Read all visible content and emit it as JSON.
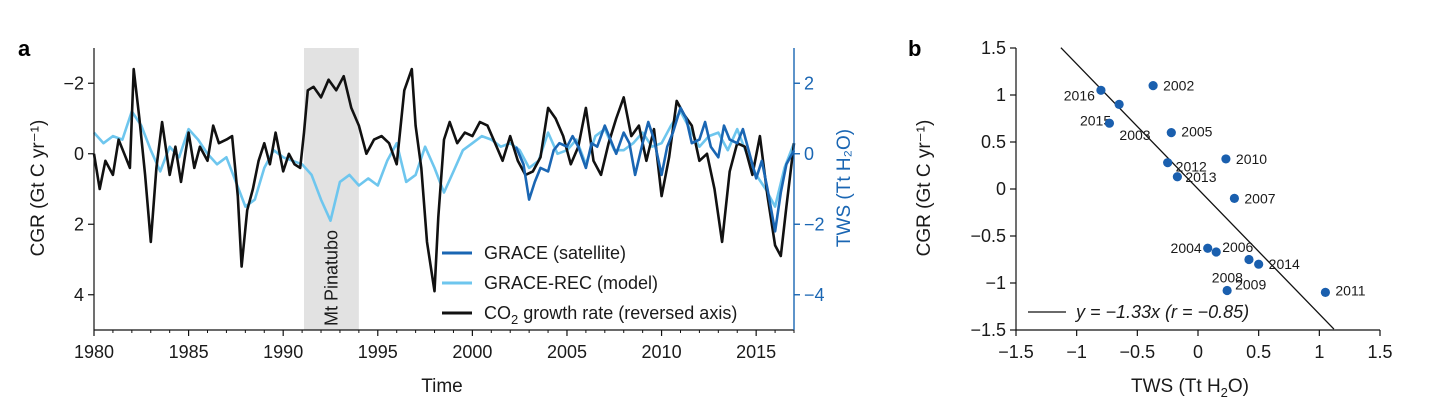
{
  "colors": {
    "grace": "#1a66b3",
    "grace_rec": "#6ec6ee",
    "cgr": "#111111",
    "points": "#1a5fae",
    "shade": "#e2e2e2"
  },
  "chart_data": [
    {
      "panel": "a",
      "type": "line",
      "xlabel": "Time",
      "ylabel_left": "CGR (Gt C yr⁻¹)",
      "ylabel_right": "TWS (Tt H₂O)",
      "xlim": [
        1980,
        2017
      ],
      "xticks": [
        "1980",
        "1985",
        "1990",
        "1995",
        "2000",
        "2005",
        "2010",
        "2015"
      ],
      "ylim_left_reversed": [
        5,
        -3
      ],
      "yticks_left": [
        "−2",
        "0",
        "2",
        "4"
      ],
      "ylim_right": [
        -5,
        3
      ],
      "yticks_right": [
        "2",
        "0",
        "−2",
        "−4"
      ],
      "annotation": {
        "text": "Mt Pinatubo",
        "x_start": 1991.1,
        "x_end": 1994.0
      },
      "legend": {
        "position": "bottom-right",
        "grace": "GRACE (satellite)",
        "grace_rec": "GRACE-REC (model)",
        "cgr_prefix": "CO",
        "cgr_sub": "2",
        "cgr_suffix": " growth rate (reversed axis)"
      },
      "series": [
        {
          "name": "CO2 growth rate (reversed axis)",
          "axis": "left",
          "x": [
            1980.0,
            1980.3,
            1980.6,
            1981.0,
            1981.3,
            1981.6,
            1981.9,
            1982.1,
            1982.4,
            1982.7,
            1983.0,
            1983.3,
            1983.6,
            1984.0,
            1984.3,
            1984.6,
            1985.0,
            1985.3,
            1985.6,
            1986.0,
            1986.3,
            1986.6,
            1987.0,
            1987.3,
            1987.6,
            1987.8,
            1988.1,
            1988.4,
            1988.7,
            1989.0,
            1989.3,
            1989.6,
            1990.0,
            1990.3,
            1990.6,
            1990.9,
            1991.1,
            1991.3,
            1991.6,
            1992.0,
            1992.4,
            1992.8,
            1993.2,
            1993.6,
            1994.0,
            1994.4,
            1994.8,
            1995.2,
            1995.6,
            1996.0,
            1996.4,
            1996.8,
            1997.0,
            1997.3,
            1997.6,
            1998.0,
            1998.2,
            1998.5,
            1998.8,
            1999.2,
            1999.6,
            2000.0,
            2000.4,
            2000.8,
            2001.2,
            2001.6,
            2002.0,
            2002.4,
            2002.8,
            2003.2,
            2003.6,
            2004.0,
            2004.4,
            2004.8,
            2005.2,
            2005.6,
            2006.0,
            2006.4,
            2006.8,
            2007.2,
            2007.6,
            2008.0,
            2008.4,
            2008.8,
            2009.2,
            2009.6,
            2010.0,
            2010.4,
            2010.8,
            2011.2,
            2011.6,
            2012.0,
            2012.4,
            2012.8,
            2013.2,
            2013.6,
            2014.0,
            2014.4,
            2014.8,
            2015.2,
            2015.6,
            2016.0,
            2016.3,
            2016.6,
            2017.0
          ],
          "values": [
            0.0,
            1.0,
            0.2,
            0.6,
            -0.4,
            0.0,
            0.4,
            -2.4,
            -1.0,
            0.6,
            2.5,
            0.4,
            -0.9,
            0.6,
            -0.2,
            0.8,
            -0.6,
            0.4,
            -0.2,
            0.2,
            -0.8,
            -0.3,
            -0.4,
            -0.5,
            1.2,
            3.2,
            1.6,
            1.0,
            0.2,
            -0.3,
            0.3,
            -0.6,
            0.5,
            0.0,
            0.3,
            0.4,
            -0.6,
            -1.8,
            -1.9,
            -1.6,
            -2.1,
            -1.8,
            -2.2,
            -1.3,
            -0.8,
            0.0,
            -0.4,
            -0.5,
            -0.3,
            0.3,
            -1.8,
            -2.4,
            -0.8,
            0.4,
            2.5,
            3.9,
            1.8,
            -0.4,
            -0.9,
            -0.3,
            -0.6,
            -0.5,
            -0.9,
            -0.8,
            -0.3,
            0.2,
            -0.5,
            0.2,
            0.6,
            0.5,
            0.1,
            -1.3,
            -1.0,
            -0.5,
            0.3,
            -0.2,
            -1.3,
            0.2,
            0.6,
            -0.3,
            -1.0,
            -1.6,
            -0.5,
            -0.8,
            0.2,
            -0.7,
            1.2,
            0.1,
            -1.5,
            -1.1,
            -0.8,
            0.2,
            0.0,
            1.0,
            2.5,
            0.5,
            -0.3,
            -0.2,
            0.6,
            -0.5,
            1.2,
            2.6,
            2.9,
            1.5,
            -0.3
          ]
        },
        {
          "name": "GRACE-REC (model)",
          "axis": "right",
          "x": [
            1980.0,
            1980.5,
            1981.0,
            1981.5,
            1982.0,
            1982.5,
            1983.0,
            1983.5,
            1984.0,
            1984.5,
            1985.0,
            1985.5,
            1986.0,
            1986.5,
            1987.0,
            1987.5,
            1988.0,
            1988.5,
            1989.0,
            1989.5,
            1990.0,
            1990.5,
            1991.0,
            1991.5,
            1992.0,
            1992.5,
            1993.0,
            1993.5,
            1994.0,
            1994.5,
            1995.0,
            1995.5,
            1996.0,
            1996.5,
            1997.0,
            1997.5,
            1998.0,
            1998.5,
            1999.0,
            1999.5,
            2000.0,
            2000.5,
            2001.0,
            2001.5,
            2002.0,
            2002.5,
            2003.0,
            2003.5,
            2004.0,
            2004.5,
            2005.0,
            2005.5,
            2006.0,
            2006.5,
            2007.0,
            2007.5,
            2008.0,
            2008.5,
            2009.0,
            2009.5,
            2010.0,
            2010.5,
            2011.0,
            2011.5,
            2012.0,
            2012.5,
            2013.0,
            2013.5,
            2014.0,
            2014.5,
            2015.0,
            2015.5,
            2016.0,
            2016.5,
            2017.0
          ],
          "values": [
            0.6,
            0.3,
            0.5,
            0.4,
            1.2,
            0.8,
            0.1,
            -0.5,
            0.2,
            -0.1,
            0.7,
            0.4,
            0.0,
            -0.3,
            -0.1,
            -0.8,
            -1.5,
            -1.3,
            -0.4,
            0.1,
            -0.1,
            -0.2,
            -0.3,
            -0.6,
            -1.3,
            -1.9,
            -0.8,
            -0.6,
            -0.9,
            -0.7,
            -0.9,
            -0.2,
            0.3,
            -0.8,
            -0.6,
            0.2,
            -0.4,
            -1.1,
            -0.5,
            0.1,
            0.3,
            0.5,
            0.4,
            0.2,
            0.3,
            0.1,
            -0.4,
            -0.2,
            0.6,
            0.0,
            0.1,
            0.4,
            -0.3,
            0.5,
            0.7,
            0.1,
            0.1,
            0.3,
            0.6,
            0.2,
            0.3,
            0.8,
            1.2,
            0.7,
            0.2,
            0.5,
            0.6,
            0.1,
            0.7,
            0.0,
            -0.6,
            -1.0,
            -1.5,
            -0.4,
            0.3
          ]
        },
        {
          "name": "GRACE (satellite)",
          "axis": "right",
          "x": [
            2002.3,
            2002.7,
            2003.0,
            2003.3,
            2003.6,
            2004.0,
            2004.3,
            2004.6,
            2005.0,
            2005.3,
            2005.6,
            2006.0,
            2006.3,
            2006.6,
            2007.0,
            2007.3,
            2007.6,
            2008.0,
            2008.3,
            2008.6,
            2009.0,
            2009.3,
            2009.6,
            2010.0,
            2010.3,
            2010.6,
            2011.0,
            2011.3,
            2011.6,
            2012.0,
            2012.3,
            2012.6,
            2013.0,
            2013.3,
            2013.6,
            2014.0,
            2014.3,
            2014.6,
            2015.0,
            2015.3,
            2015.6,
            2016.0,
            2016.3,
            2016.6,
            2017.0
          ],
          "values": [
            0.2,
            -0.3,
            -1.3,
            -0.8,
            -0.4,
            -0.5,
            0.1,
            0.3,
            0.2,
            0.5,
            0.2,
            -0.4,
            0.3,
            0.2,
            0.8,
            0.4,
            0.0,
            0.6,
            0.3,
            -0.6,
            0.3,
            0.9,
            0.4,
            -0.6,
            0.2,
            0.6,
            1.3,
            1.0,
            0.3,
            0.4,
            0.9,
            0.2,
            -0.1,
            0.8,
            0.4,
            0.3,
            0.7,
            0.1,
            -0.7,
            -0.2,
            -1.0,
            -2.2,
            -1.1,
            -0.3,
            0.1
          ]
        }
      ]
    },
    {
      "panel": "b",
      "type": "scatter",
      "xlabel_prefix": "TWS (Tt H",
      "xlabel_sub": "2",
      "xlabel_suffix": "O)",
      "ylabel": "CGR (Gt C yr⁻¹)",
      "xlim": [
        -1.5,
        1.5
      ],
      "ylim": [
        -1.5,
        1.5
      ],
      "xticks": [
        "−1.5",
        "−1",
        "−0.5",
        "0",
        "0.5",
        "1",
        "1.5"
      ],
      "yticks": [
        "1.5",
        "1",
        "0.5",
        "0",
        "−0.5",
        "−1",
        "−1.5"
      ],
      "legend": {
        "position": "bottom-left",
        "text": "y = −1.33x (r = −0.85)"
      },
      "fit": {
        "slope": -1.33,
        "intercept": 0
      },
      "points": [
        {
          "label": "2016",
          "x": -0.8,
          "y": 1.05
        },
        {
          "label": "2015",
          "x": -0.65,
          "y": 0.9
        },
        {
          "label": "2003",
          "x": -0.73,
          "y": 0.7
        },
        {
          "label": "2002",
          "x": -0.37,
          "y": 1.1
        },
        {
          "label": "2005",
          "x": -0.22,
          "y": 0.6
        },
        {
          "label": "2012",
          "x": -0.25,
          "y": 0.28
        },
        {
          "label": "2013",
          "x": -0.17,
          "y": 0.13
        },
        {
          "label": "2010",
          "x": 0.23,
          "y": 0.32
        },
        {
          "label": "2007",
          "x": 0.3,
          "y": -0.1
        },
        {
          "label": "2004",
          "x": 0.08,
          "y": -0.63
        },
        {
          "label": "2006",
          "x": 0.15,
          "y": -0.67
        },
        {
          "label": "2008",
          "x": 0.42,
          "y": -0.75
        },
        {
          "label": "2014",
          "x": 0.5,
          "y": -0.8
        },
        {
          "label": "2009",
          "x": 0.24,
          "y": -1.08
        },
        {
          "label": "2011",
          "x": 1.05,
          "y": -1.1
        }
      ]
    }
  ]
}
